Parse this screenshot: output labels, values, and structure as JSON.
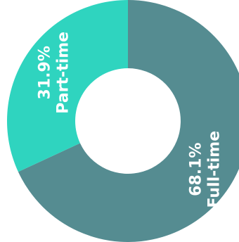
{
  "chart_data": {
    "type": "pie",
    "donut": true,
    "slices": [
      {
        "label": "Full-time",
        "value": 68.1,
        "value_text": "68.1%",
        "color": "#558c91"
      },
      {
        "label": "Part-time",
        "value": 31.9,
        "value_text": "31.9%",
        "color": "#2fd4bf"
      }
    ],
    "title": "",
    "legend": "none",
    "labels_inside": true,
    "label_color": "#ffffff",
    "start": "top",
    "direction": "clockwise"
  }
}
